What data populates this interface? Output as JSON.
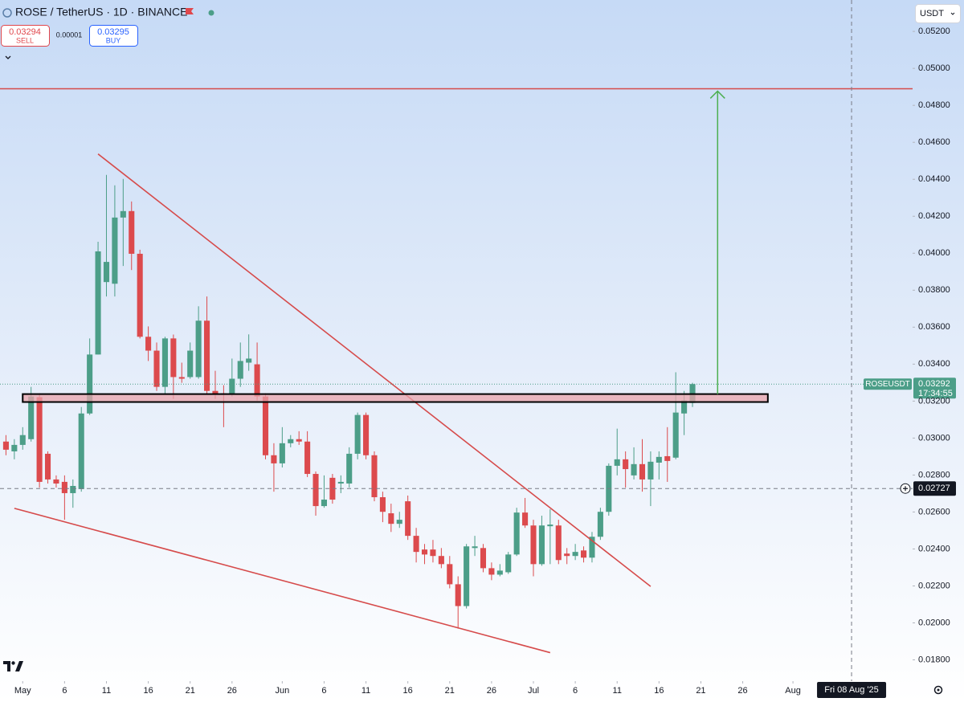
{
  "toolbar": {
    "symbol": "ROSE / TetherUS · 1D · BINANCE",
    "sell": {
      "price": 0.03294,
      "label": "SELL"
    },
    "spread": 1e-05,
    "buy": {
      "price": 0.03295,
      "label": "BUY"
    },
    "currency": "USDT"
  },
  "chart_data": {
    "type": "candlestick",
    "up_color": "#4c9e88",
    "down_color": "#dc4a4d",
    "x": [
      "2025-04-29",
      "2025-04-30",
      "2025-05-01",
      "2025-05-02",
      "2025-05-03",
      "2025-05-04",
      "2025-05-05",
      "2025-05-06",
      "2025-05-07",
      "2025-05-08",
      "2025-05-09",
      "2025-05-10",
      "2025-05-11",
      "2025-05-12",
      "2025-05-13",
      "2025-05-14",
      "2025-05-15",
      "2025-05-16",
      "2025-05-17",
      "2025-05-18",
      "2025-05-19",
      "2025-05-20",
      "2025-05-21",
      "2025-05-22",
      "2025-05-23",
      "2025-05-24",
      "2025-05-25",
      "2025-05-26",
      "2025-05-27",
      "2025-05-28",
      "2025-05-29",
      "2025-05-30",
      "2025-05-31",
      "2025-06-01",
      "2025-06-02",
      "2025-06-03",
      "2025-06-04",
      "2025-06-05",
      "2025-06-06",
      "2025-06-07",
      "2025-06-08",
      "2025-06-09",
      "2025-06-10",
      "2025-06-11",
      "2025-06-12",
      "2025-06-13",
      "2025-06-14",
      "2025-06-15",
      "2025-06-16",
      "2025-06-17",
      "2025-06-18",
      "2025-06-19",
      "2025-06-20",
      "2025-06-21",
      "2025-06-22",
      "2025-06-23",
      "2025-06-24",
      "2025-06-25",
      "2025-06-26",
      "2025-06-27",
      "2025-06-28",
      "2025-06-29",
      "2025-06-30",
      "2025-07-01",
      "2025-07-02",
      "2025-07-03",
      "2025-07-04",
      "2025-07-05",
      "2025-07-06",
      "2025-07-07",
      "2025-07-08",
      "2025-07-09",
      "2025-07-10",
      "2025-07-11",
      "2025-07-12",
      "2025-07-13",
      "2025-07-14",
      "2025-07-15",
      "2025-07-16",
      "2025-07-17",
      "2025-07-18",
      "2025-07-19",
      "2025-07-20"
    ],
    "ohlc": [
      [
        0.02981,
        0.03016,
        0.02907,
        0.02937
      ],
      [
        0.02928,
        0.02994,
        0.02885,
        0.02963
      ],
      [
        0.02963,
        0.03059,
        0.02937,
        0.03016
      ],
      [
        0.02994,
        0.03277,
        0.02981,
        0.03225
      ],
      [
        0.03221,
        0.03242,
        0.02732,
        0.02763
      ],
      [
        0.02915,
        0.02928,
        0.02754,
        0.02776
      ],
      [
        0.02776,
        0.02798,
        0.02732,
        0.02754
      ],
      [
        0.02763,
        0.02798,
        0.02558,
        0.02702
      ],
      [
        0.02702,
        0.02776,
        0.02623,
        0.02741
      ],
      [
        0.02724,
        0.03168,
        0.0271,
        0.03133
      ],
      [
        0.03133,
        0.03539,
        0.03125,
        0.03452
      ],
      [
        0.03452,
        0.04062,
        0.03452,
        0.0401
      ],
      [
        0.03844,
        0.04424,
        0.03766,
        0.03953
      ],
      [
        0.03835,
        0.04367,
        0.03766,
        0.04193
      ],
      [
        0.04193,
        0.04402,
        0.03931,
        0.04228
      ],
      [
        0.04228,
        0.0428,
        0.03909,
        0.03997
      ],
      [
        0.03997,
        0.04019,
        0.03539,
        0.03548
      ],
      [
        0.03548,
        0.03604,
        0.03417,
        0.03473
      ],
      [
        0.03473,
        0.03517,
        0.03255,
        0.03277
      ],
      [
        0.03277,
        0.03548,
        0.03234,
        0.03539
      ],
      [
        0.03539,
        0.0356,
        0.03212,
        0.0333
      ],
      [
        0.0333,
        0.03408,
        0.03299,
        0.03321
      ],
      [
        0.0333,
        0.03517,
        0.03321,
        0.03473
      ],
      [
        0.0333,
        0.03713,
        0.03321,
        0.03635
      ],
      [
        0.03635,
        0.03766,
        0.03234,
        0.03255
      ],
      [
        0.03255,
        0.03364,
        0.03212,
        0.03234
      ],
      [
        0.03242,
        0.03286,
        0.03059,
        0.03234
      ],
      [
        0.03234,
        0.0343,
        0.03225,
        0.03321
      ],
      [
        0.03321,
        0.03517,
        0.03277,
        0.03417
      ],
      [
        0.03408,
        0.03561,
        0.03364,
        0.0343
      ],
      [
        0.03399,
        0.03517,
        0.03203,
        0.03225
      ],
      [
        0.03225,
        0.03242,
        0.02885,
        0.02907
      ],
      [
        0.02907,
        0.02972,
        0.0271,
        0.02863
      ],
      [
        0.02863,
        0.03059,
        0.02841,
        0.02972
      ],
      [
        0.02972,
        0.03016,
        0.0295,
        0.02994
      ],
      [
        0.02994,
        0.03037,
        0.02963,
        0.02981
      ],
      [
        0.02981,
        0.03037,
        0.02789,
        0.02806
      ],
      [
        0.02806,
        0.02819,
        0.0258,
        0.02632
      ],
      [
        0.02632,
        0.02798,
        0.02623,
        0.02667
      ],
      [
        0.02785,
        0.02806,
        0.02645,
        0.02667
      ],
      [
        0.02754,
        0.02798,
        0.02702,
        0.02763
      ],
      [
        0.02754,
        0.0295,
        0.02732,
        0.02915
      ],
      [
        0.02915,
        0.03138,
        0.02885,
        0.03125
      ],
      [
        0.03125,
        0.03138,
        0.02885,
        0.02907
      ],
      [
        0.02907,
        0.02928,
        0.02658,
        0.0268
      ],
      [
        0.0268,
        0.0271,
        0.02545,
        0.02601
      ],
      [
        0.02593,
        0.02645,
        0.02492,
        0.02536
      ],
      [
        0.02536,
        0.02601,
        0.02514,
        0.02558
      ],
      [
        0.02658,
        0.02689,
        0.02449,
        0.02471
      ],
      [
        0.02471,
        0.02514,
        0.02327,
        0.02384
      ],
      [
        0.02397,
        0.02427,
        0.02318,
        0.0237
      ],
      [
        0.02397,
        0.02449,
        0.02327,
        0.02362
      ],
      [
        0.02362,
        0.02405,
        0.02296,
        0.02318
      ],
      [
        0.02318,
        0.02362,
        0.02187,
        0.02209
      ],
      [
        0.02209,
        0.02252,
        0.01969,
        0.02091
      ],
      [
        0.02091,
        0.02427,
        0.02078,
        0.02414
      ],
      [
        0.02405,
        0.02471,
        0.02362,
        0.02414
      ],
      [
        0.02405,
        0.02427,
        0.02274,
        0.02296
      ],
      [
        0.02296,
        0.02327,
        0.02231,
        0.02261
      ],
      [
        0.02261,
        0.02318,
        0.02252,
        0.02283
      ],
      [
        0.02274,
        0.02384,
        0.02265,
        0.0237
      ],
      [
        0.0237,
        0.02623,
        0.02362,
        0.02597
      ],
      [
        0.02597,
        0.02676,
        0.02514,
        0.02527
      ],
      [
        0.02527,
        0.02558,
        0.02252,
        0.02318
      ],
      [
        0.02318,
        0.0258,
        0.02309,
        0.02527
      ],
      [
        0.02523,
        0.02615,
        0.02318,
        0.02532
      ],
      [
        0.02527,
        0.02558,
        0.02318,
        0.0234
      ],
      [
        0.02375,
        0.02405,
        0.02318,
        0.02362
      ],
      [
        0.02362,
        0.02427,
        0.0234,
        0.02384
      ],
      [
        0.02392,
        0.02414,
        0.02327,
        0.02353
      ],
      [
        0.02353,
        0.02492,
        0.02327,
        0.02466
      ],
      [
        0.02466,
        0.02623,
        0.02449,
        0.02601
      ],
      [
        0.02601,
        0.02863,
        0.0258,
        0.0285
      ],
      [
        0.0285,
        0.03051,
        0.02798,
        0.02885
      ],
      [
        0.02885,
        0.02928,
        0.02732,
        0.02832
      ],
      [
        0.02798,
        0.0295,
        0.02776,
        0.02859
      ],
      [
        0.02859,
        0.02994,
        0.0271,
        0.02776
      ],
      [
        0.02776,
        0.02928,
        0.02632,
        0.02872
      ],
      [
        0.02867,
        0.02928,
        0.02776,
        0.02898
      ],
      [
        0.02902,
        0.03059,
        0.02763,
        0.02876
      ],
      [
        0.02894,
        0.03356,
        0.02885,
        0.03138
      ],
      [
        0.03133,
        0.03255,
        0.03016,
        0.03203
      ],
      [
        0.0319,
        0.03299,
        0.03168,
        0.03292
      ]
    ],
    "xlim": [
      "2025-04-28",
      "2025-08-15"
    ],
    "ylim": [
      0.01685,
      0.0537
    ],
    "yticks": [
      {
        "value": 0.018,
        "label": "0.01800"
      },
      {
        "value": 0.02,
        "label": "0.02000"
      },
      {
        "value": 0.022,
        "label": "0.02200"
      },
      {
        "value": 0.024,
        "label": "0.02400"
      },
      {
        "value": 0.026,
        "label": "0.02600"
      },
      {
        "value": 0.028,
        "label": "0.02800"
      },
      {
        "value": 0.03,
        "label": "0.03000"
      },
      {
        "value": 0.032,
        "label": "0.03200"
      },
      {
        "value": 0.034,
        "label": "0.03400"
      },
      {
        "value": 0.036,
        "label": "0.03600"
      },
      {
        "value": 0.038,
        "label": "0.03800"
      },
      {
        "value": 0.04,
        "label": "0.04000"
      },
      {
        "value": 0.042,
        "label": "0.04200"
      },
      {
        "value": 0.044,
        "label": "0.04400"
      },
      {
        "value": 0.046,
        "label": "0.04600"
      },
      {
        "value": 0.048,
        "label": "0.04800"
      },
      {
        "value": 0.05,
        "label": "0.05000"
      },
      {
        "value": 0.052,
        "label": "0.05200"
      }
    ],
    "xticks": [
      {
        "value": "2025-05-01",
        "label": "May"
      },
      {
        "value": "2025-05-06",
        "label": "6"
      },
      {
        "value": "2025-05-11",
        "label": "11"
      },
      {
        "value": "2025-05-16",
        "label": "16"
      },
      {
        "value": "2025-05-21",
        "label": "21"
      },
      {
        "value": "2025-05-26",
        "label": "26"
      },
      {
        "value": "2025-06-01",
        "label": "Jun"
      },
      {
        "value": "2025-06-06",
        "label": "6"
      },
      {
        "value": "2025-06-11",
        "label": "11"
      },
      {
        "value": "2025-06-16",
        "label": "16"
      },
      {
        "value": "2025-06-21",
        "label": "21"
      },
      {
        "value": "2025-06-26",
        "label": "26"
      },
      {
        "value": "2025-07-01",
        "label": "Jul"
      },
      {
        "value": "2025-07-06",
        "label": "6"
      },
      {
        "value": "2025-07-11",
        "label": "11"
      },
      {
        "value": "2025-07-16",
        "label": "16"
      },
      {
        "value": "2025-07-21",
        "label": "21"
      },
      {
        "value": "2025-07-26",
        "label": "26"
      },
      {
        "value": "2025-08-01",
        "label": "Aug"
      }
    ],
    "drawings": [
      {
        "type": "hline",
        "y": 0.0489,
        "color": "#d64b4b"
      },
      {
        "type": "trendline",
        "x": [
          "2025-05-10",
          "2025-07-15"
        ],
        "y": [
          0.04537,
          0.02197
        ],
        "color": "#d64b4b"
      },
      {
        "type": "trendline",
        "x": [
          "2025-04-30",
          "2025-07-03"
        ],
        "y": [
          0.0262,
          0.01839
        ],
        "color": "#d64b4b"
      },
      {
        "type": "rect",
        "x": [
          "2025-05-01",
          "2025-07-29"
        ],
        "y": [
          0.03195,
          0.03238
        ],
        "color": "#e9a3ab"
      },
      {
        "type": "arrow",
        "x": "2025-07-23",
        "y": [
          0.03238,
          0.04877
        ],
        "color": "#4caf50"
      }
    ],
    "last_price": {
      "symbol": "ROSEUSDT",
      "value": 0.03292,
      "countdown": "17:34:55"
    },
    "crosshair": {
      "y": 0.02727,
      "x": {
        "value": "2025-08-08",
        "label": "Fri 08 Aug '25"
      }
    }
  }
}
